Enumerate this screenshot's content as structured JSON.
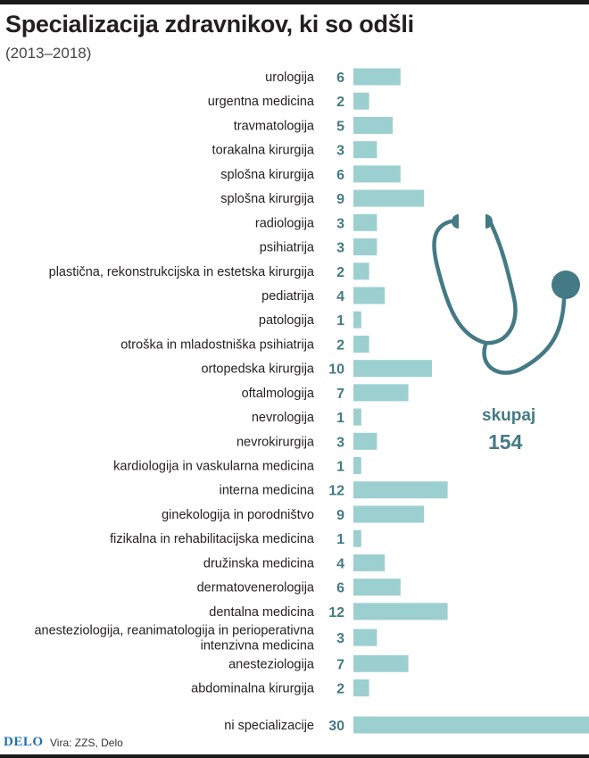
{
  "title": "Specializacija zdravnikov, ki so odšli",
  "subtitle": "(2013–2018)",
  "colors": {
    "bar": "#9ccfd0",
    "value": "#447a85",
    "icon": "#447a85",
    "text": "#231f20"
  },
  "chart_data": {
    "type": "bar",
    "orientation": "horizontal",
    "title": "Specializacija zdravnikov, ki so odšli",
    "subtitle": "(2013–2018)",
    "xlim": [
      0,
      30
    ],
    "grid": false,
    "categories": [
      [
        "urologija"
      ],
      [
        "urgentna medicina"
      ],
      [
        "travmatologija"
      ],
      [
        "torakalna kirurgija"
      ],
      [
        "splošna kirurgija"
      ],
      [
        "splošna kirurgija"
      ],
      [
        "radiologija"
      ],
      [
        "psihiatrija"
      ],
      [
        "plastična, rekonstrukcijska in estetska kirurgija"
      ],
      [
        "pediatrija"
      ],
      [
        "patologija"
      ],
      [
        "otroška in mladostniška psihiatrija"
      ],
      [
        "ortopedska kirurgija"
      ],
      [
        "oftalmologija"
      ],
      [
        "nevrologija"
      ],
      [
        "nevrokirurgija"
      ],
      [
        "kardiologija in vaskularna medicina"
      ],
      [
        "interna medicina"
      ],
      [
        "ginekologija in porodništvo"
      ],
      [
        "fizikalna in rehabilitacijska medicina"
      ],
      [
        "družinska medicina"
      ],
      [
        "dermatovenerologija"
      ],
      [
        "dentalna medicina"
      ],
      [
        "anesteziologija, reanimatologija in perioperativna",
        "intenzivna medicina"
      ],
      [
        "anesteziologija"
      ],
      [
        "abdominalna kirurgija"
      ],
      [
        "ni specializacije"
      ]
    ],
    "values": [
      6,
      2,
      5,
      3,
      6,
      9,
      3,
      3,
      2,
      4,
      1,
      2,
      10,
      7,
      1,
      3,
      1,
      12,
      9,
      1,
      4,
      6,
      12,
      3,
      7,
      2,
      30
    ]
  },
  "total": {
    "label": "skupaj",
    "value": "154"
  },
  "icon": "stethoscope-icon",
  "footer": {
    "logo": "DELO",
    "source": "Vira: ZZS, Delo"
  }
}
